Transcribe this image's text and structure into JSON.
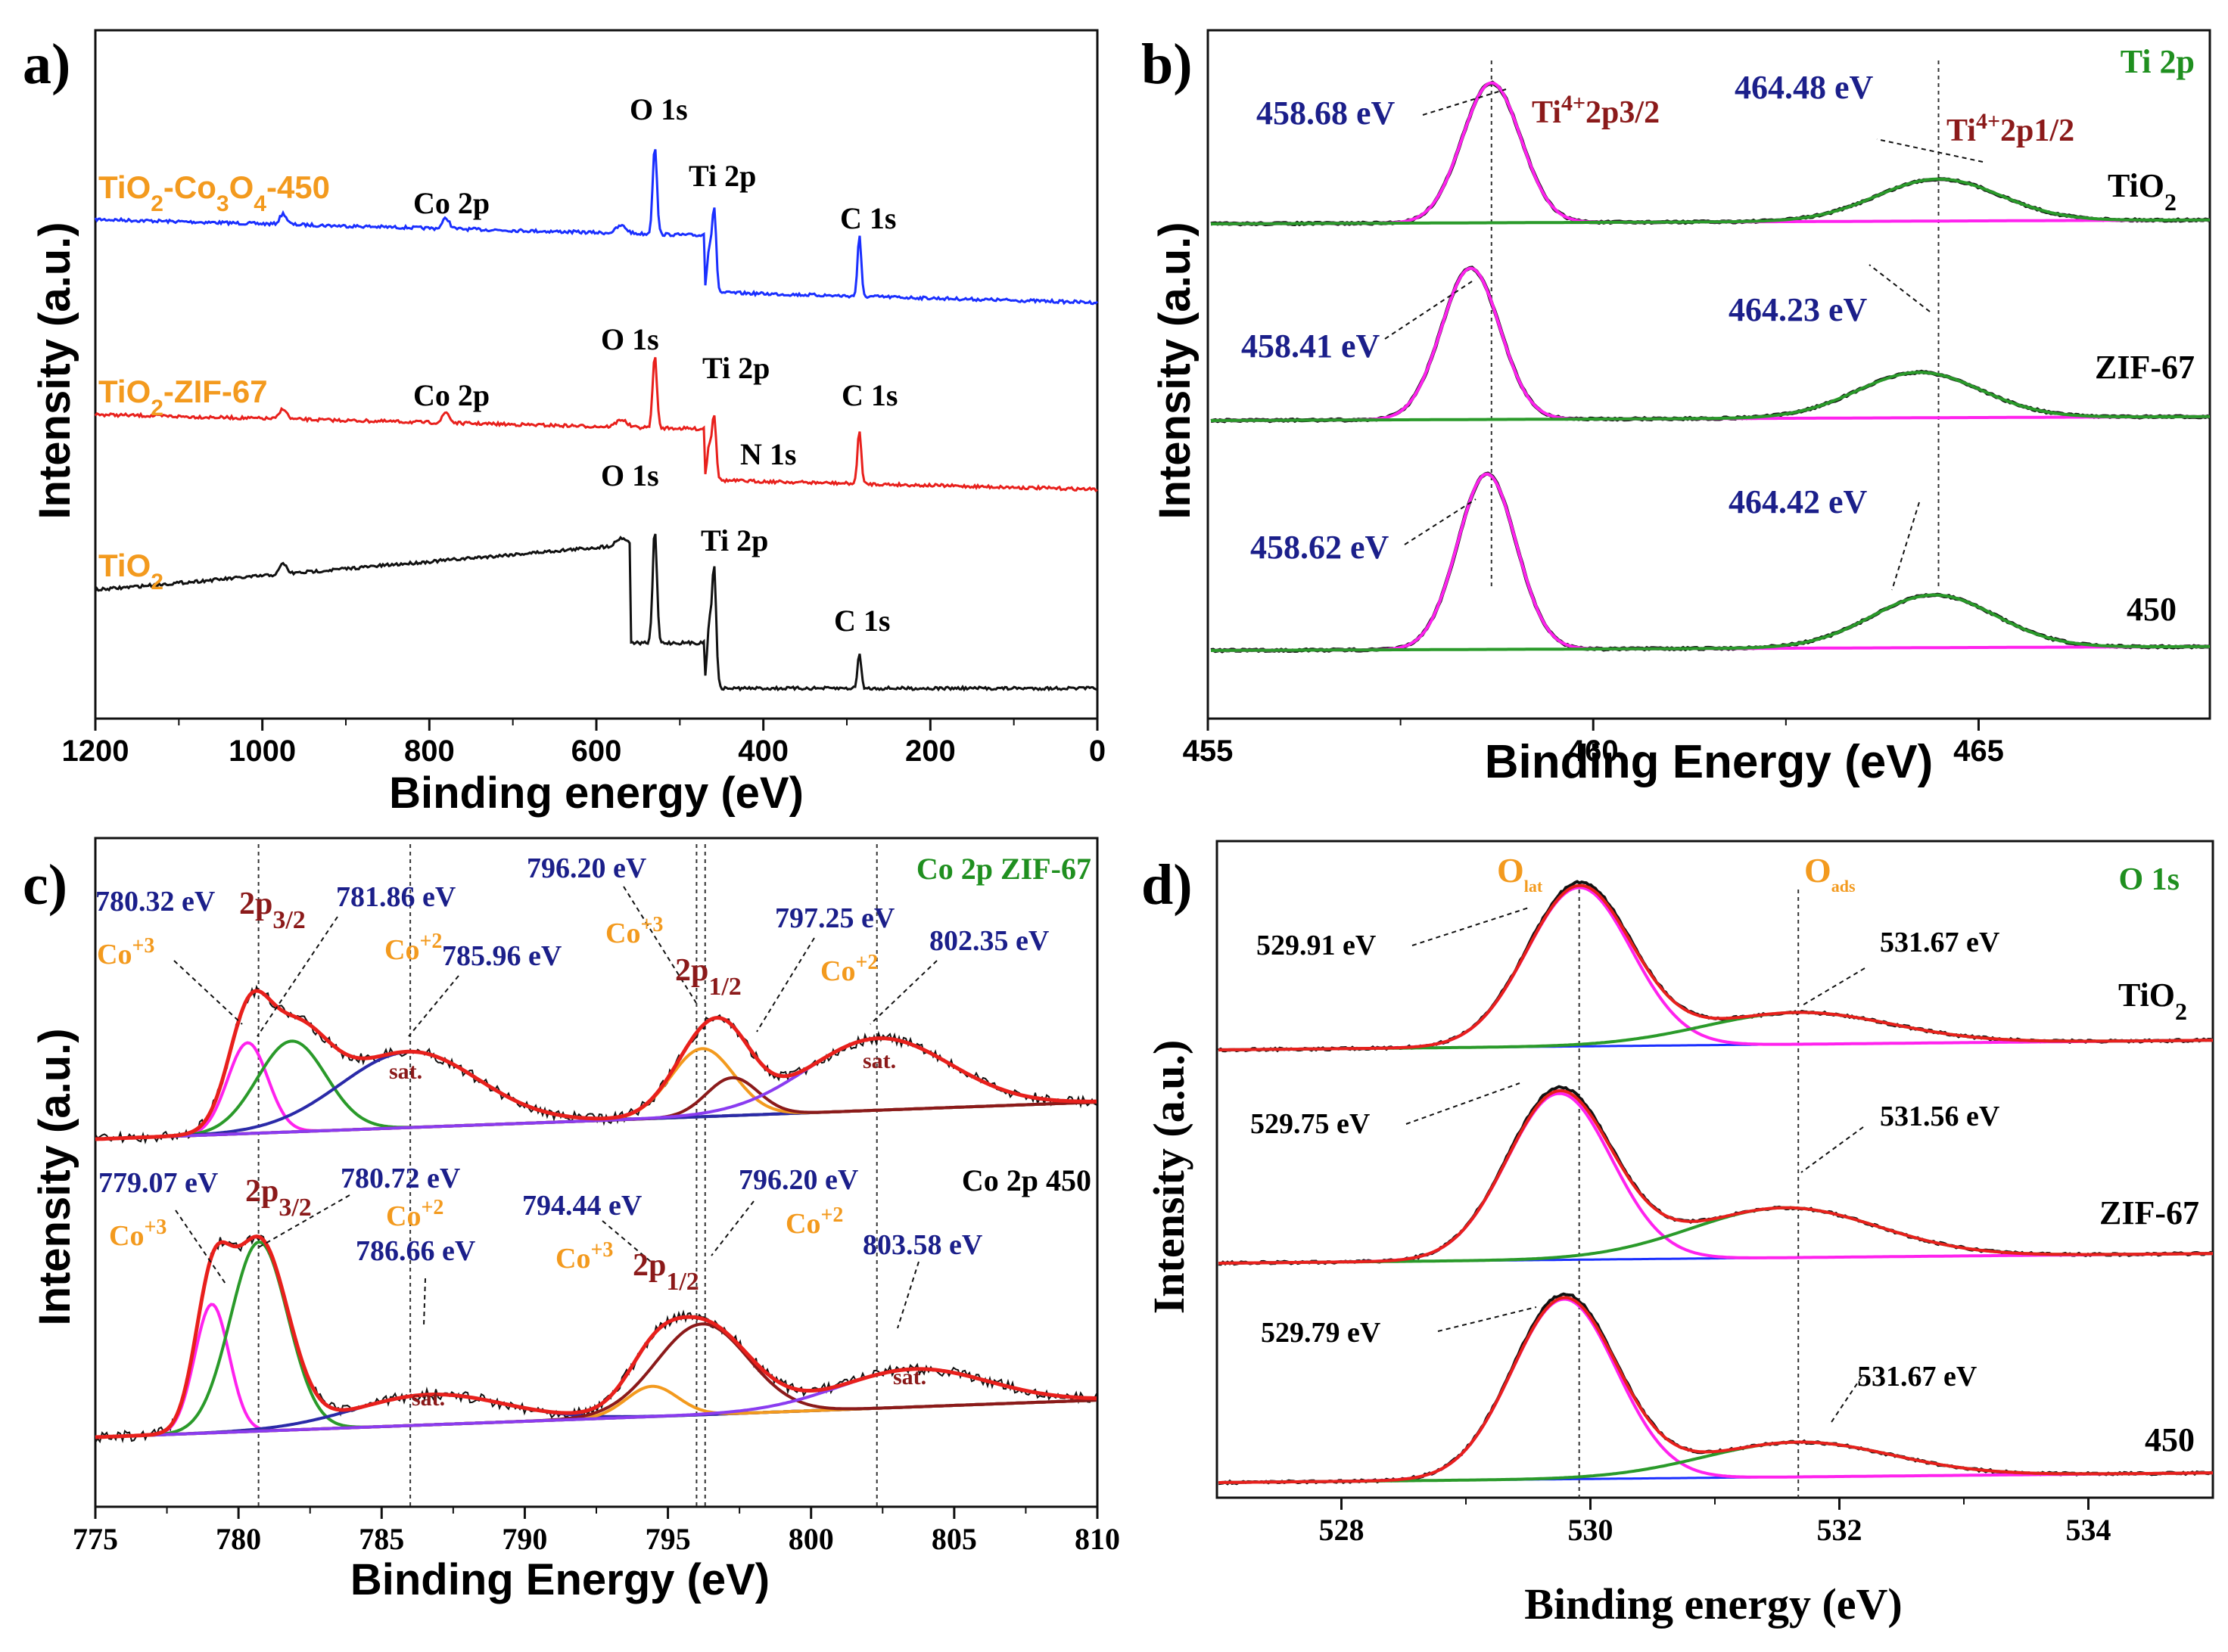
{
  "colors": {
    "black": "#111111",
    "red": "#e8201c",
    "blue": "#1a2fff",
    "magenta": "#ff22ee",
    "green": "#2a9a2a",
    "darkgreen": "#1f8f1f",
    "navy": "#1b1f8a",
    "maroon": "#8b1a1a",
    "orange": "#f39a1e",
    "purple": "#8a3cf0",
    "royal": "#2a2aa8"
  },
  "chart_data": [
    {
      "panel": "a)",
      "type": "line",
      "xlabel": "Binding energy (eV)",
      "ylabel": "Intensity (a.u.)",
      "xlim": [
        1200,
        0
      ],
      "xticks": [
        "1200",
        "1000",
        "800",
        "600",
        "400",
        "200",
        "0"
      ],
      "series": [
        {
          "name": "TiO2-Co3O4-450",
          "label_parts": [
            "TiO",
            "2",
            "-Co",
            "3",
            "O",
            "4",
            "-450"
          ],
          "color": "#1a2fff",
          "peaks": [
            {
              "label": "O 1s",
              "x": 530
            },
            {
              "label": "Ti 2p",
              "x": 459
            },
            {
              "label": "C 1s",
              "x": 285
            },
            {
              "label": "Co 2p",
              "x": 780
            }
          ]
        },
        {
          "name": "TiO2-ZIF-67",
          "label_parts": [
            "TiO",
            "2",
            "-ZIF-67"
          ],
          "color": "#e8201c",
          "peaks": [
            {
              "label": "O 1s",
              "x": 530
            },
            {
              "label": "Ti 2p",
              "x": 459
            },
            {
              "label": "C 1s",
              "x": 285
            },
            {
              "label": "Co 2p",
              "x": 780
            },
            {
              "label": "N 1s",
              "x": 400
            }
          ]
        },
        {
          "name": "TiO2",
          "label_parts": [
            "TiO",
            "2"
          ],
          "color": "#111111",
          "peaks": [
            {
              "label": "O 1s",
              "x": 530
            },
            {
              "label": "Ti 2p",
              "x": 459
            },
            {
              "label": "C 1s",
              "x": 285
            }
          ]
        }
      ]
    },
    {
      "panel": "b)",
      "type": "line",
      "title": "Ti 2p",
      "xlabel": "Binding Energy (eV)",
      "ylabel": "Intensity (a.u.)",
      "xlim": [
        455,
        468
      ],
      "xticks": [
        "455",
        "460",
        "465"
      ],
      "reference_lines": [
        458.68,
        464.48
      ],
      "peak_labels": [
        {
          "main": "Ti",
          "sup": "4+",
          "rest": "2p3/2"
        },
        {
          "main": "Ti",
          "sup": "4+",
          "rest": "2p1/2"
        }
      ],
      "series": [
        {
          "name": "TiO2",
          "label_parts": [
            "TiO",
            "2"
          ],
          "peaks": [
            458.68,
            464.48
          ],
          "labels": [
            "458.68 eV",
            "464.48 eV"
          ]
        },
        {
          "name": "ZIF-67",
          "label_parts": [
            "ZIF-67"
          ],
          "peaks": [
            458.41,
            464.23
          ],
          "labels": [
            "458.41 eV",
            "464.23 eV"
          ]
        },
        {
          "name": "450",
          "label_parts": [
            "450"
          ],
          "peaks": [
            458.62,
            464.42
          ],
          "labels": [
            "458.62 eV",
            "464.42 eV"
          ]
        }
      ]
    },
    {
      "panel": "c)",
      "type": "line",
      "xlabel": "Binding Energy (eV)",
      "ylabel": "Intensity (a.u.)",
      "xlim": [
        775,
        810
      ],
      "xticks": [
        "775",
        "780",
        "785",
        "790",
        "795",
        "800",
        "805",
        "810"
      ],
      "reference_lines": [
        780.7,
        786.0,
        796.0,
        796.3,
        802.3
      ],
      "series": [
        {
          "name": "Co 2p ZIF-67",
          "annotations": [
            "780.32 eV",
            "781.86 eV",
            "785.96 eV",
            "796.20 eV",
            "797.25 eV",
            "802.35 eV"
          ],
          "labels": {
            "co3": "Co",
            "co3_sup": "+3",
            "co2": "Co",
            "co2_sup": "+2",
            "p32": "2p",
            "p32_sub": "3/2",
            "p12": "2p",
            "p12_sub": "1/2",
            "sat": "sat."
          },
          "components": [
            {
              "center": 780.32,
              "color": "magenta"
            },
            {
              "center": 781.86,
              "color": "green"
            },
            {
              "center": 785.96,
              "color": "royal"
            },
            {
              "center": 796.2,
              "color": "orange"
            },
            {
              "center": 797.25,
              "color": "maroon"
            },
            {
              "center": 802.35,
              "color": "purple"
            }
          ]
        },
        {
          "name": "Co 2p 450",
          "annotations": [
            "779.07 eV",
            "780.72 eV",
            "786.66 eV",
            "794.44 eV",
            "796.20 eV",
            "803.58 eV"
          ],
          "components": [
            {
              "center": 779.07,
              "color": "magenta"
            },
            {
              "center": 780.72,
              "color": "green"
            },
            {
              "center": 786.66,
              "color": "royal"
            },
            {
              "center": 794.44,
              "color": "orange"
            },
            {
              "center": 796.2,
              "color": "maroon"
            },
            {
              "center": 803.58,
              "color": "purple"
            }
          ]
        }
      ]
    },
    {
      "panel": "d)",
      "type": "line",
      "title": "O 1s",
      "xlabel": "Binding energy (eV)",
      "ylabel": "Intensity (a.u.)",
      "xlim": [
        527,
        535
      ],
      "xticks": [
        "528",
        "530",
        "532",
        "534"
      ],
      "reference_lines": [
        529.91,
        531.67
      ],
      "peak_labels": [
        {
          "main": "O",
          "sub": "lat"
        },
        {
          "main": "O",
          "sub": "ads"
        }
      ],
      "series": [
        {
          "name": "TiO2",
          "label_parts": [
            "TiO",
            "2"
          ],
          "peaks": [
            529.91,
            531.67
          ],
          "labels": [
            "529.91 eV",
            "531.67 eV"
          ]
        },
        {
          "name": "ZIF-67",
          "label_parts": [
            "ZIF-67"
          ],
          "peaks": [
            529.75,
            531.56
          ],
          "labels": [
            "529.75 eV",
            "531.56 eV"
          ]
        },
        {
          "name": "450",
          "label_parts": [
            "450"
          ],
          "peaks": [
            529.79,
            531.67
          ],
          "labels": [
            "529.79 eV",
            "531.67 eV"
          ]
        }
      ]
    }
  ]
}
